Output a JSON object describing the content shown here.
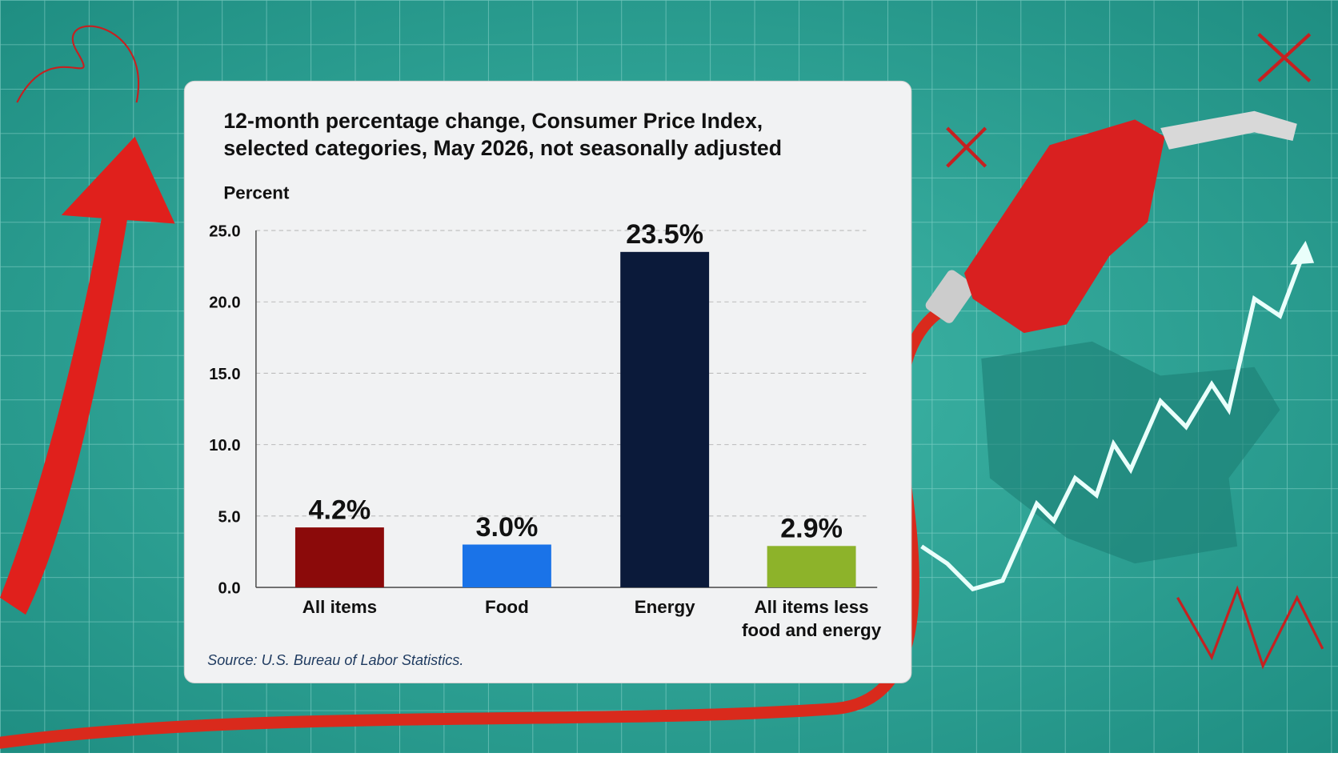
{
  "chart_data": {
    "type": "bar",
    "title": [
      "12-month percentage change, Consumer Price Index,",
      "selected categories, May 2026, not seasonally adjusted"
    ],
    "y_label": "Percent",
    "categories": [
      "All items",
      "Food",
      "Energy",
      "All items less food and energy"
    ],
    "series": [
      {
        "colors": [
          "#8b0a0a",
          "#1a73e8",
          "#0b1a3a",
          "#8db32a"
        ],
        "values": [
          4.2,
          3.0,
          23.5,
          2.9
        ],
        "value_labels": [
          "4.2%",
          "3.0%",
          "23.5%",
          "2.9%"
        ]
      }
    ],
    "ylim": [
      0,
      25
    ],
    "yticks": [
      {
        "value": 0,
        "label": "0.0"
      },
      {
        "value": 5,
        "label": "5.0"
      },
      {
        "value": 10,
        "label": "10.0"
      },
      {
        "value": 15,
        "label": "15.0"
      },
      {
        "value": 20,
        "label": "20.0"
      },
      {
        "value": 25,
        "label": "25.0"
      }
    ],
    "grid": true,
    "source": "Source: U.S. Bureau of Labor Statistics."
  }
}
